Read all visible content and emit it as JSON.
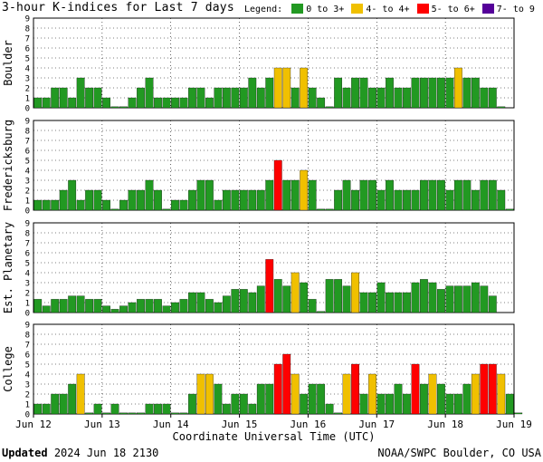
{
  "title": "3-hour K-indices for Last 7 days",
  "legend": {
    "label": "Legend:",
    "items": [
      {
        "label": "0 to 3+",
        "color": "#229922"
      },
      {
        "label": "4- to 4+",
        "color": "#f0c000"
      },
      {
        "label": "5- to 6+",
        "color": "#ff0000"
      },
      {
        "label": "7- to 9",
        "color": "#550099"
      }
    ]
  },
  "footer": {
    "updated_label": "Updated",
    "updated_value": "2024 Jun 18 2130",
    "source": "NOAA/SWPC Boulder, CO USA"
  },
  "chart_data": {
    "type": "bar",
    "x_axis": {
      "label": "Coordinate Universal Time (UTC)",
      "ticks": [
        "Jun 12",
        "Jun 13",
        "Jun 14",
        "Jun 15",
        "Jun 16",
        "Jun 17",
        "Jun 18",
        "Jun 19"
      ]
    },
    "y_ticks": [
      "0",
      "1",
      "2",
      "3",
      "4",
      "5",
      "6",
      "7",
      "8",
      "9"
    ],
    "ylim": [
      0,
      9
    ],
    "grid": true,
    "panels": [
      {
        "name": "Boulder",
        "values": [
          1,
          1,
          2,
          2,
          1,
          3,
          2,
          2,
          1,
          0,
          0,
          1,
          2,
          3,
          1,
          1,
          1,
          1,
          2,
          2,
          1,
          2,
          2,
          2,
          2,
          3,
          2,
          3,
          4,
          4,
          2,
          4,
          2,
          1,
          0,
          3,
          2,
          3,
          3,
          2,
          2,
          3,
          2,
          2,
          3,
          3,
          3,
          3,
          3,
          4,
          3,
          3,
          2,
          2,
          0
        ]
      },
      {
        "name": "Fredericksburg",
        "values": [
          1,
          1,
          1,
          2,
          3,
          1,
          2,
          2,
          1,
          0,
          1,
          2,
          2,
          3,
          2,
          0,
          1,
          1,
          2,
          3,
          3,
          1,
          2,
          2,
          2,
          2,
          2,
          3,
          5,
          3,
          3,
          4,
          3,
          0,
          0,
          2,
          3,
          2,
          3,
          3,
          2,
          3,
          2,
          2,
          2,
          3,
          3,
          3,
          2,
          3,
          3,
          2,
          3,
          3,
          2,
          0
        ]
      },
      {
        "name": "Est. Planetary",
        "values": [
          1.33,
          0.67,
          1.33,
          1.33,
          1.67,
          1.67,
          1.33,
          1.33,
          0.67,
          0.33,
          0.67,
          1,
          1.33,
          1.33,
          1.33,
          0.67,
          1,
          1.33,
          2,
          2,
          1.33,
          1,
          1.67,
          2.33,
          2.33,
          2,
          2.67,
          5.33,
          3.33,
          2.67,
          4,
          3,
          1.33,
          0,
          3.33,
          3.33,
          2.67,
          4,
          2,
          2,
          3,
          2,
          2,
          2,
          3,
          3.33,
          3,
          2.33,
          2.67,
          2.67,
          2.67,
          3,
          2.67,
          1.67
        ]
      },
      {
        "name": "College",
        "values": [
          1,
          1,
          2,
          2,
          3,
          4,
          0,
          1,
          0,
          1,
          0,
          0,
          0,
          1,
          1,
          1,
          0,
          0,
          2,
          4,
          4,
          3,
          1,
          2,
          2,
          1,
          3,
          3,
          5,
          6,
          4,
          2,
          3,
          3,
          1,
          0,
          4,
          5,
          2,
          4,
          2,
          2,
          3,
          2,
          5,
          3,
          4,
          3,
          2,
          2,
          3,
          4,
          5,
          5,
          4,
          2,
          0
        ]
      }
    ]
  }
}
